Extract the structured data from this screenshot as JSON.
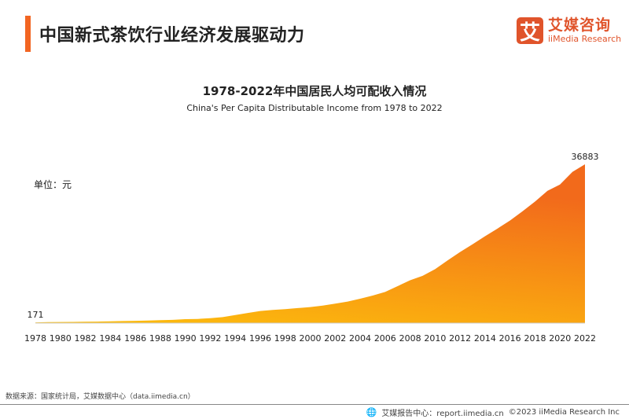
{
  "header": {
    "title": "中国新式茶饮行业经济发展驱动力",
    "logo_cn": "艾媒咨询",
    "logo_en": "iiMedia Research",
    "logo_mark": "艾"
  },
  "footer": {
    "source": "数据来源：国家统计局，艾媒数据中心（data.iimedia.cn）",
    "report": "艾媒报告中心：report.iimedia.cn",
    "copyright": "©2023  iiMedia Research  Inc"
  },
  "chart_data": {
    "type": "area",
    "title": "1978-2022年中国居民人均可配收入情况",
    "subtitle": "China's Per Capita Distributable Income from 1978 to 2022",
    "unit_label": "单位：元",
    "xlabel": "",
    "ylabel": "",
    "grid": false,
    "legend": "none",
    "colors": {
      "top": "#f26a1b",
      "bottom": "#fdbf0c"
    },
    "x": [
      1978,
      1979,
      1980,
      1981,
      1982,
      1983,
      1984,
      1985,
      1986,
      1987,
      1988,
      1989,
      1990,
      1991,
      1992,
      1993,
      1994,
      1995,
      1996,
      1997,
      1998,
      1999,
      2000,
      2001,
      2002,
      2003,
      2004,
      2005,
      2006,
      2007,
      2008,
      2009,
      2010,
      2011,
      2012,
      2013,
      2014,
      2015,
      2016,
      2017,
      2018,
      2019,
      2020,
      2021,
      2022
    ],
    "values": [
      171,
      212,
      247,
      272,
      315,
      349,
      394,
      479,
      526,
      580,
      681,
      752,
      904,
      976,
      1125,
      1385,
      1870,
      2363,
      2814,
      3070,
      3254,
      3485,
      3721,
      4070,
      4532,
      5007,
      5661,
      6385,
      7229,
      8584,
      9957,
      10977,
      12520,
      14551,
      16510,
      18311,
      20167,
      21966,
      23821,
      25974,
      28228,
      30733,
      32189,
      35128,
      36883
    ],
    "x_ticks": [
      "1978",
      "1980",
      "1982",
      "1984",
      "1986",
      "1988",
      "1990",
      "1992",
      "1994",
      "1996",
      "1998",
      "2000",
      "2002",
      "2004",
      "2006",
      "2008",
      "2010",
      "2012",
      "2014",
      "2016",
      "2018",
      "2020",
      "2022"
    ],
    "data_labels": [
      {
        "x": 1978,
        "text": "171"
      },
      {
        "x": 2022,
        "text": "36883"
      }
    ]
  }
}
